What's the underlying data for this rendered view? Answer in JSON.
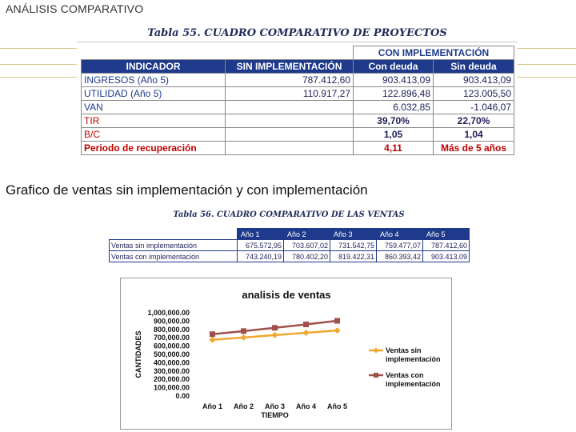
{
  "slide_title": "ANÁLISIS COMPARATIVO",
  "table55": {
    "caption": "Tabla 55. CUADRO COMPARATIVO DE PROYECTOS",
    "group_header": "CON IMPLEMENTACIÓN",
    "headers": [
      "INDICADOR",
      "SIN IMPLEMENTACIÓN",
      "Con deuda",
      "Sin deuda"
    ],
    "rows": [
      {
        "indicator": "INGRESOS (Año 5)",
        "sin": "787.412,60",
        "con_deuda": "903.413,09",
        "sin_deuda": "903.413,09"
      },
      {
        "indicator": "UTILIDAD (Año 5)",
        "sin": "110.917,27",
        "con_deuda": "122.896,48",
        "sin_deuda": "123.005,50"
      },
      {
        "indicator": "VAN",
        "sin": "",
        "con_deuda": "6.032,85",
        "sin_deuda": "-1.046,07"
      },
      {
        "indicator": "TIR",
        "sin": "",
        "con_deuda": "39,70%",
        "sin_deuda": "22,70%"
      },
      {
        "indicator": "B/C",
        "sin": "",
        "con_deuda": "1,05",
        "sin_deuda": "1,04"
      },
      {
        "indicator": "Periodo de recuperación",
        "sin": "",
        "con_deuda": "4,11",
        "sin_deuda": "Más de 5 años"
      }
    ]
  },
  "section_heading": "Grafico de ventas sin implementación y con implementación",
  "table56": {
    "caption": "Tabla 56. CUADRO COMPARATIVO DE LAS VENTAS",
    "headers": [
      "Año 1",
      "Año 2",
      "Año 3",
      "Año 4",
      "Año 5"
    ],
    "rows": [
      {
        "label": "Ventas sin implementación",
        "values": [
          "675.572,95",
          "703.607,02",
          "731.542,75",
          "759.477,07",
          "787.412,60"
        ]
      },
      {
        "label": "Ventas con implementación",
        "values": [
          "743.240,19",
          "780.402,20",
          "819.422,31",
          "860.393,42",
          "903.413,09"
        ]
      }
    ]
  },
  "chart_data": {
    "type": "line",
    "title": "analisis de ventas",
    "xlabel": "TIEMPO",
    "ylabel": "CANTIDADES",
    "categories": [
      "Año 1",
      "Año 2",
      "Año 3",
      "Año 4",
      "Año 5"
    ],
    "ylim": [
      0,
      1000000
    ],
    "yticks": [
      "1,000,000.00",
      "900,000.00",
      "800,000.00",
      "700,000.00",
      "600,000.00",
      "500,000.00",
      "400,000.00",
      "300,000.00",
      "200,000.00",
      "100,000.00",
      "0.00"
    ],
    "series": [
      {
        "name": "Ventas sin implementación",
        "values": [
          675572.95,
          703607.02,
          731542.75,
          759477.07,
          787412.6
        ],
        "color": "#f0a830",
        "marker": "diamond"
      },
      {
        "name": "Ventas con implementación",
        "values": [
          743240.19,
          780402.2,
          819422.31,
          860393.42,
          903413.09
        ],
        "color": "#a0504a",
        "marker": "square"
      }
    ],
    "legend_lines": [
      [
        "Ventas sin",
        "implementación"
      ],
      [
        "Ventas con",
        "implementación"
      ]
    ],
    "legend": "right",
    "grid": false
  },
  "colors": {
    "header_blue": "#1f3a8a",
    "accent_red": "#c00000",
    "deco_gold": "#d9c48a"
  }
}
